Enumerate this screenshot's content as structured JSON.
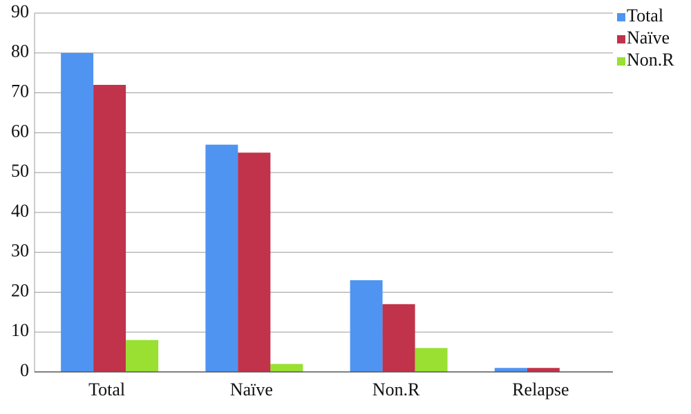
{
  "chart_data": {
    "type": "bar",
    "categories": [
      "Total",
      "Naïve",
      "Non.R",
      "Relapse"
    ],
    "series": [
      {
        "name": "Total",
        "color": "#4f94f0",
        "values": [
          80,
          57,
          23,
          1
        ]
      },
      {
        "name": "Naïve",
        "color": "#c0334a",
        "values": [
          72,
          55,
          17,
          1
        ]
      },
      {
        "name": "Non.R",
        "color": "#99e033",
        "values": [
          8,
          2,
          6,
          0
        ]
      }
    ],
    "ylim": [
      0,
      90
    ],
    "yticks": [
      0,
      10,
      20,
      30,
      40,
      50,
      60,
      70,
      80,
      90
    ],
    "grid": true,
    "legend": "top-right"
  }
}
